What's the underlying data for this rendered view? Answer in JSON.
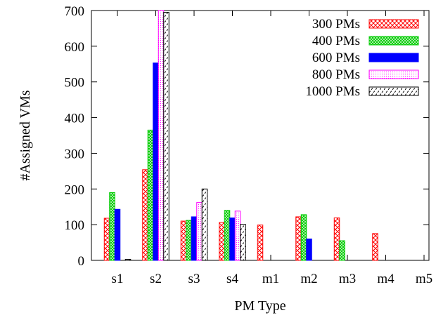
{
  "chart_data": {
    "type": "bar",
    "title": "",
    "xlabel": "PM Type",
    "ylabel": "#Assigned VMs",
    "categories": [
      "s1",
      "s2",
      "s3",
      "s4",
      "m1",
      "m2",
      "m3",
      "m4",
      "m5"
    ],
    "ylim": [
      0,
      700
    ],
    "yticks": [
      0,
      100,
      200,
      300,
      400,
      500,
      600,
      700
    ],
    "grid": false,
    "legend_position": "top-right",
    "series": [
      {
        "name": "300 PMs",
        "color": "#ff0000",
        "pattern": "crosshatch",
        "values": [
          118,
          254,
          110,
          106,
          99,
          122,
          119,
          75,
          0
        ]
      },
      {
        "name": "400 PMs",
        "color": "#00cc00",
        "pattern": "dense-crosshatch",
        "values": [
          190,
          365,
          112,
          140,
          0,
          128,
          55,
          0,
          0
        ]
      },
      {
        "name": "600 PMs",
        "color": "#0000ff",
        "pattern": "solid",
        "values": [
          143,
          553,
          122,
          119,
          0,
          60,
          0,
          0,
          0
        ]
      },
      {
        "name": "800 PMs",
        "color": "#ff00ff",
        "pattern": "dotted",
        "values": [
          0,
          700,
          162,
          138,
          0,
          0,
          0,
          0,
          0
        ]
      },
      {
        "name": "1000 PMs",
        "color": "#000000",
        "pattern": "diagonal-dashed",
        "values": [
          3,
          695,
          200,
          101,
          0,
          0,
          0,
          0,
          0
        ]
      }
    ]
  }
}
